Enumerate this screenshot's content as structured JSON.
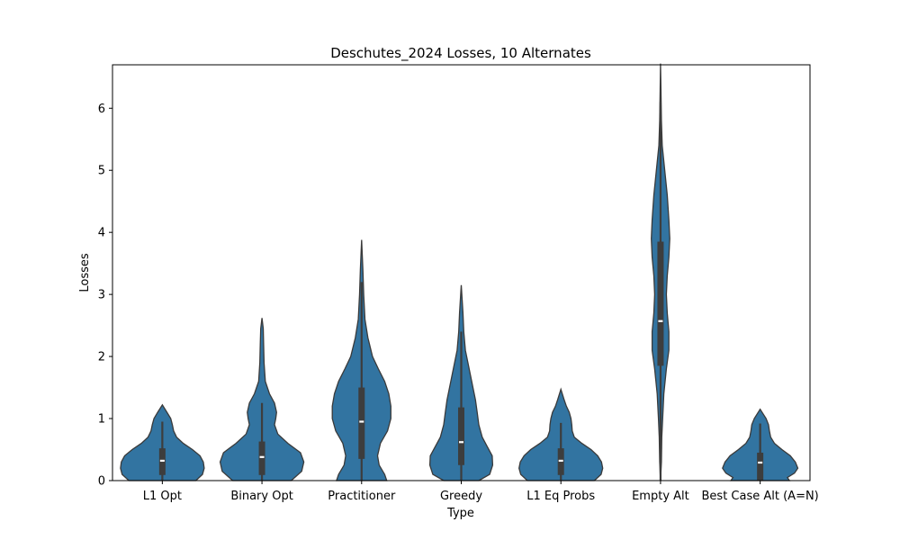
{
  "chart_data": {
    "type": "violin",
    "title": "Deschutes_2024 Losses, 10 Alternates",
    "xlabel": "Type",
    "ylabel": "Losses",
    "ylim": [
      0,
      6.7
    ],
    "yticks": [
      0,
      1,
      2,
      3,
      4,
      5,
      6
    ],
    "grid": false,
    "color": "#3274a1",
    "categories": [
      "L1 Opt",
      "Binary Opt",
      "Practitioner",
      "Greedy",
      "L1 Eq Probs",
      "Empty Alt",
      "Best Case Alt (A=N)"
    ],
    "series": [
      {
        "category": "L1 Opt",
        "min": 0,
        "q1": 0.09,
        "median": 0.32,
        "q3": 0.52,
        "whisker_high": 0.95,
        "max": 1.22,
        "density": [
          [
            0,
            0.8
          ],
          [
            0.1,
            0.96
          ],
          [
            0.2,
            1.0
          ],
          [
            0.3,
            0.98
          ],
          [
            0.4,
            0.9
          ],
          [
            0.5,
            0.72
          ],
          [
            0.6,
            0.5
          ],
          [
            0.7,
            0.34
          ],
          [
            0.8,
            0.27
          ],
          [
            0.9,
            0.24
          ],
          [
            1.0,
            0.2
          ],
          [
            1.1,
            0.11
          ],
          [
            1.22,
            0.0
          ]
        ]
      },
      {
        "category": "Binary Opt",
        "min": 0,
        "q1": 0.09,
        "median": 0.38,
        "q3": 0.63,
        "whisker_high": 1.25,
        "max": 2.62,
        "density": [
          [
            0,
            0.7
          ],
          [
            0.15,
            0.95
          ],
          [
            0.3,
            1.0
          ],
          [
            0.45,
            0.92
          ],
          [
            0.6,
            0.62
          ],
          [
            0.75,
            0.38
          ],
          [
            0.9,
            0.3
          ],
          [
            1.0,
            0.33
          ],
          [
            1.1,
            0.35
          ],
          [
            1.25,
            0.3
          ],
          [
            1.4,
            0.18
          ],
          [
            1.6,
            0.08
          ],
          [
            1.9,
            0.05
          ],
          [
            2.2,
            0.04
          ],
          [
            2.45,
            0.03
          ],
          [
            2.62,
            0.0
          ]
        ]
      },
      {
        "category": "Practitioner",
        "min": 0,
        "q1": 0.35,
        "median": 0.95,
        "q3": 1.5,
        "whisker_high": 3.2,
        "max": 3.88,
        "density": [
          [
            0,
            0.6
          ],
          [
            0.1,
            0.55
          ],
          [
            0.25,
            0.42
          ],
          [
            0.4,
            0.38
          ],
          [
            0.6,
            0.45
          ],
          [
            0.8,
            0.62
          ],
          [
            1.0,
            0.7
          ],
          [
            1.2,
            0.7
          ],
          [
            1.4,
            0.65
          ],
          [
            1.6,
            0.55
          ],
          [
            1.8,
            0.4
          ],
          [
            2.0,
            0.26
          ],
          [
            2.3,
            0.15
          ],
          [
            2.6,
            0.08
          ],
          [
            3.0,
            0.05
          ],
          [
            3.4,
            0.03
          ],
          [
            3.88,
            0.0
          ]
        ]
      },
      {
        "category": "Greedy",
        "min": 0,
        "q1": 0.25,
        "median": 0.62,
        "q3": 1.18,
        "whisker_high": 2.4,
        "max": 3.15,
        "density": [
          [
            0,
            0.42
          ],
          [
            0.1,
            0.68
          ],
          [
            0.25,
            0.75
          ],
          [
            0.4,
            0.74
          ],
          [
            0.55,
            0.62
          ],
          [
            0.7,
            0.5
          ],
          [
            0.9,
            0.42
          ],
          [
            1.1,
            0.38
          ],
          [
            1.3,
            0.34
          ],
          [
            1.5,
            0.28
          ],
          [
            1.7,
            0.22
          ],
          [
            1.9,
            0.16
          ],
          [
            2.1,
            0.1
          ],
          [
            2.4,
            0.06
          ],
          [
            2.7,
            0.04
          ],
          [
            3.15,
            0.0
          ]
        ]
      },
      {
        "category": "L1 Eq Probs",
        "min": 0,
        "q1": 0.09,
        "median": 0.32,
        "q3": 0.52,
        "whisker_high": 0.93,
        "max": 1.47,
        "density": [
          [
            0,
            0.8
          ],
          [
            0.1,
            0.96
          ],
          [
            0.2,
            1.0
          ],
          [
            0.3,
            0.97
          ],
          [
            0.4,
            0.88
          ],
          [
            0.5,
            0.72
          ],
          [
            0.6,
            0.5
          ],
          [
            0.7,
            0.32
          ],
          [
            0.8,
            0.27
          ],
          [
            0.9,
            0.26
          ],
          [
            1.0,
            0.24
          ],
          [
            1.1,
            0.2
          ],
          [
            1.2,
            0.13
          ],
          [
            1.3,
            0.08
          ],
          [
            1.47,
            0.0
          ]
        ]
      },
      {
        "category": "Empty Alt",
        "min": 0,
        "q1": 1.85,
        "median": 2.57,
        "q3": 3.85,
        "whisker_high": 6.1,
        "max": 6.72,
        "density": [
          [
            0,
            0.0
          ],
          [
            0.3,
            0.02
          ],
          [
            0.7,
            0.03
          ],
          [
            1.0,
            0.05
          ],
          [
            1.4,
            0.08
          ],
          [
            1.8,
            0.14
          ],
          [
            2.1,
            0.2
          ],
          [
            2.4,
            0.2
          ],
          [
            2.7,
            0.16
          ],
          [
            3.0,
            0.14
          ],
          [
            3.3,
            0.16
          ],
          [
            3.6,
            0.2
          ],
          [
            3.9,
            0.22
          ],
          [
            4.2,
            0.2
          ],
          [
            4.6,
            0.16
          ],
          [
            5.0,
            0.1
          ],
          [
            5.4,
            0.04
          ],
          [
            5.8,
            0.02
          ],
          [
            6.3,
            0.01
          ],
          [
            6.72,
            0.0
          ]
        ]
      },
      {
        "category": "Best Case Alt (A=N)",
        "min": 0,
        "q1": 0.0,
        "median": 0.29,
        "q3": 0.45,
        "whisker_high": 0.92,
        "max": 1.15,
        "density": [
          [
            0,
            0.7
          ],
          [
            0.05,
            0.65
          ],
          [
            0.12,
            0.82
          ],
          [
            0.2,
            0.9
          ],
          [
            0.3,
            0.84
          ],
          [
            0.4,
            0.72
          ],
          [
            0.5,
            0.52
          ],
          [
            0.6,
            0.34
          ],
          [
            0.7,
            0.25
          ],
          [
            0.8,
            0.22
          ],
          [
            0.9,
            0.2
          ],
          [
            1.0,
            0.14
          ],
          [
            1.15,
            0.0
          ]
        ]
      }
    ]
  }
}
